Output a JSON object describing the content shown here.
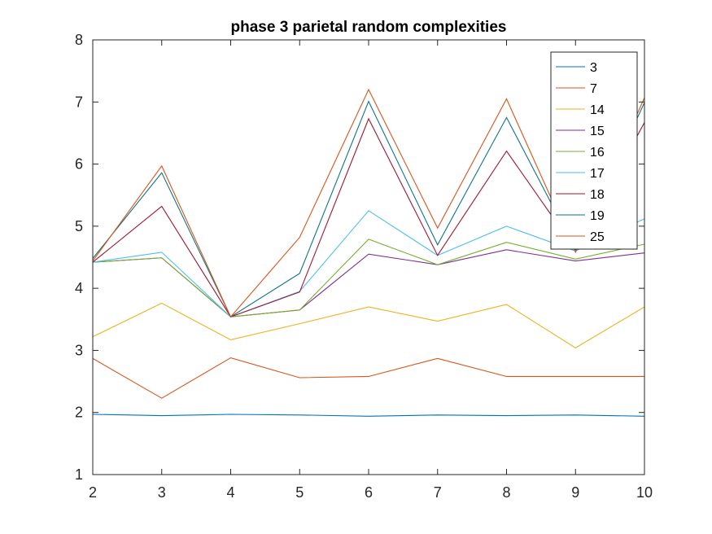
{
  "chart_data": {
    "type": "line",
    "title": "phase 3 parietal random complexities",
    "xlabel": "",
    "ylabel": "",
    "xlim": [
      2,
      10
    ],
    "ylim": [
      1,
      8
    ],
    "x": [
      2,
      3,
      4,
      5,
      6,
      7,
      8,
      9,
      10
    ],
    "xticks": [
      "2",
      "3",
      "4",
      "5",
      "6",
      "7",
      "8",
      "9",
      "10"
    ],
    "yticks": [
      "1",
      "2",
      "3",
      "4",
      "5",
      "6",
      "7",
      "8"
    ],
    "grid": false,
    "legend_position": "top-right",
    "series": [
      {
        "name": "3",
        "color": "#0072BD",
        "values": [
          1.97,
          1.95,
          1.97,
          1.96,
          1.94,
          1.96,
          1.95,
          1.96,
          1.94
        ]
      },
      {
        "name": "7",
        "color": "#D95319",
        "values": [
          2.87,
          2.23,
          2.88,
          2.56,
          2.58,
          2.87,
          2.58,
          2.58,
          2.58
        ]
      },
      {
        "name": "14",
        "color": "#EDB120",
        "values": [
          3.22,
          3.76,
          3.17,
          3.43,
          3.7,
          3.47,
          3.74,
          3.04,
          3.7
        ]
      },
      {
        "name": "15",
        "color": "#7E2F8E",
        "values": [
          4.42,
          4.49,
          3.54,
          3.65,
          4.55,
          4.38,
          4.62,
          4.44,
          4.57
        ]
      },
      {
        "name": "16",
        "color": "#77AC30",
        "values": [
          4.42,
          4.49,
          3.54,
          3.65,
          4.79,
          4.38,
          4.74,
          4.47,
          4.71
        ]
      },
      {
        "name": "17",
        "color": "#4DBEEE",
        "values": [
          4.42,
          4.58,
          3.54,
          3.95,
          5.25,
          4.53,
          5.0,
          4.6,
          5.12
        ]
      },
      {
        "name": "18",
        "color": "#A2142F",
        "values": [
          4.42,
          5.32,
          3.54,
          3.94,
          6.73,
          4.53,
          6.21,
          4.62,
          6.67
        ]
      },
      {
        "name": "19",
        "color": "#0F7388",
        "values": [
          4.48,
          5.86,
          3.54,
          4.24,
          7.01,
          4.7,
          6.75,
          4.62,
          6.99
        ]
      },
      {
        "name": "25",
        "color": "#D95319",
        "values": [
          4.44,
          5.97,
          3.54,
          4.82,
          7.2,
          4.97,
          7.05,
          4.58,
          7.07
        ]
      }
    ]
  }
}
